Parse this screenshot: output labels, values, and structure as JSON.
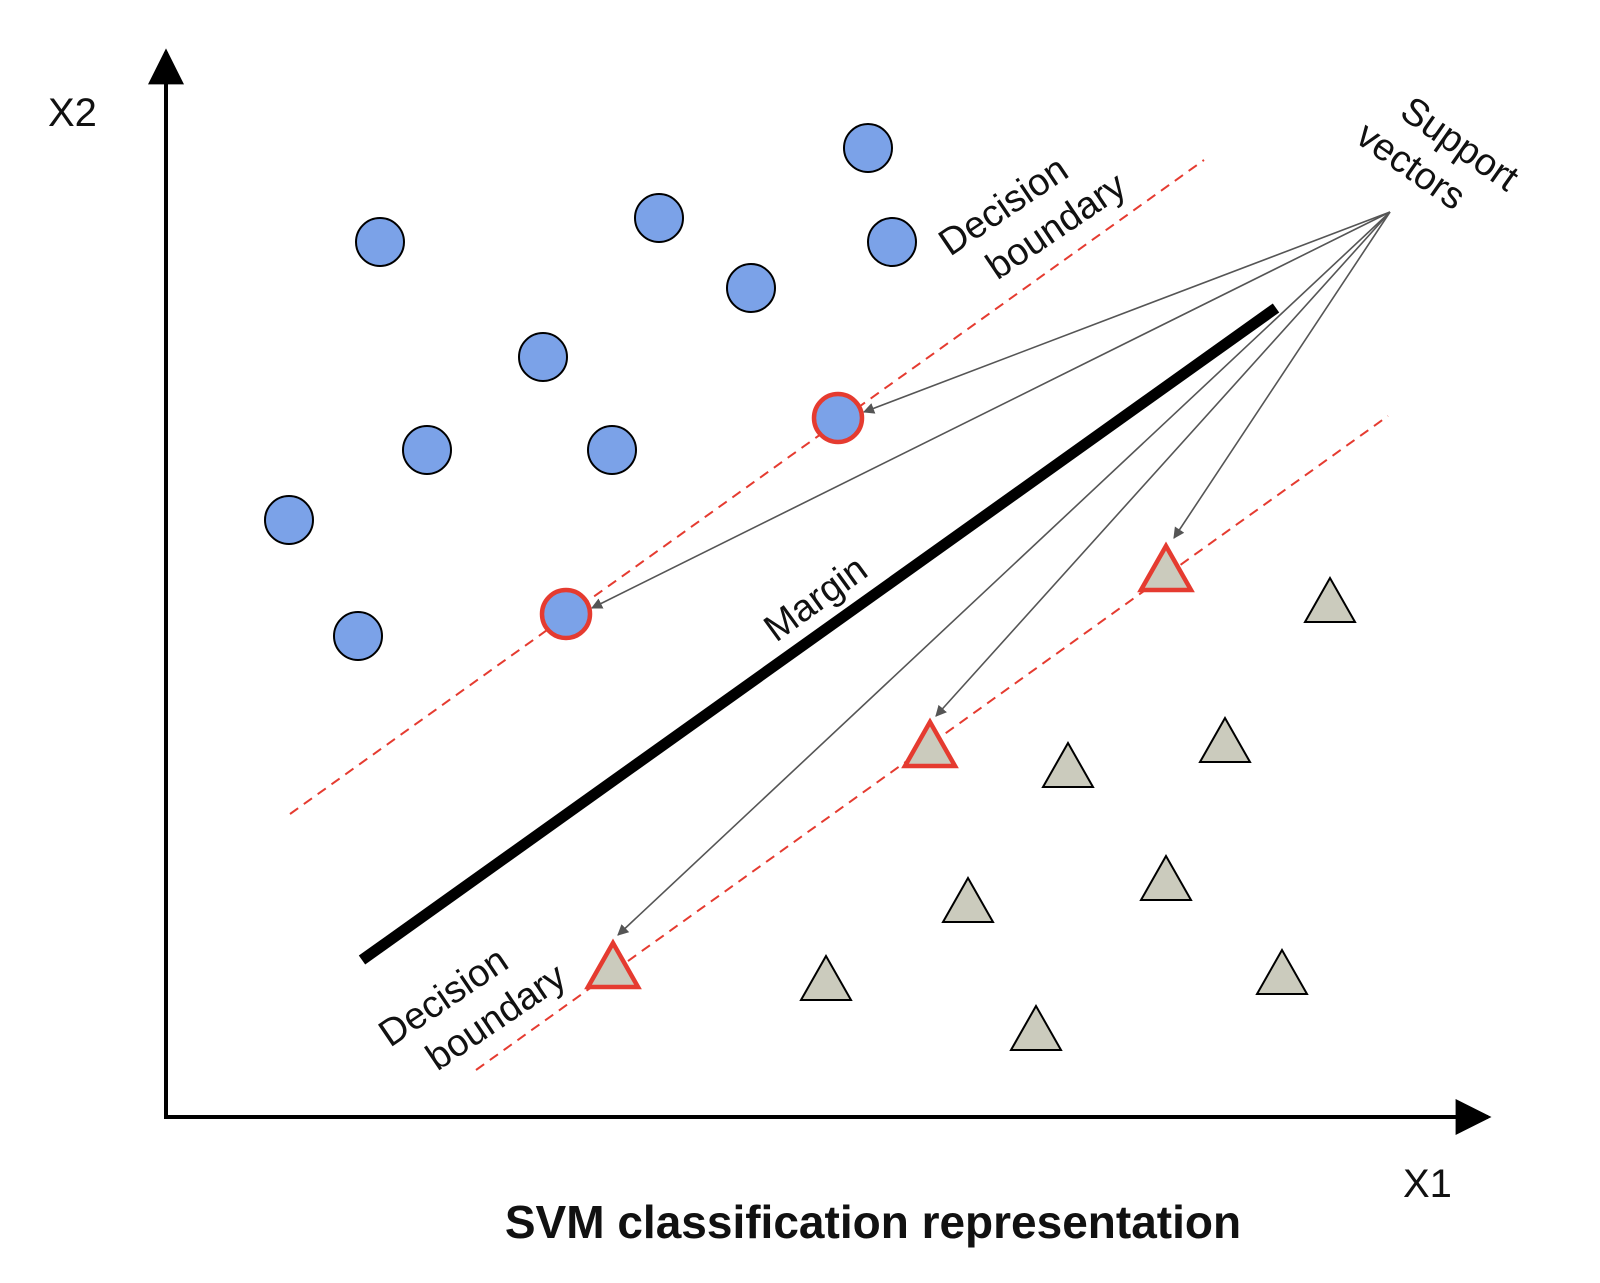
{
  "title": "SVM classification representation",
  "axes": {
    "x_label": "X1",
    "y_label": "X2"
  },
  "annotations": {
    "decision_boundary_top": [
      "Decision",
      "boundary"
    ],
    "decision_boundary_bottom": [
      "Decision",
      "boundary"
    ],
    "margin": "Margin",
    "support_vectors": [
      "Support",
      "vectors"
    ]
  },
  "colors": {
    "class_a_fill": "#7ba2e8",
    "class_b_fill": "#cbcbbd",
    "support_outline": "#e53b30",
    "boundary_dash": "#e53b30",
    "hyperplane": "#000000",
    "pointer": "#555555"
  },
  "legend_semantics": {
    "class_a_marker": "circle",
    "class_b_marker": "triangle",
    "support_vector_count": 5
  }
}
